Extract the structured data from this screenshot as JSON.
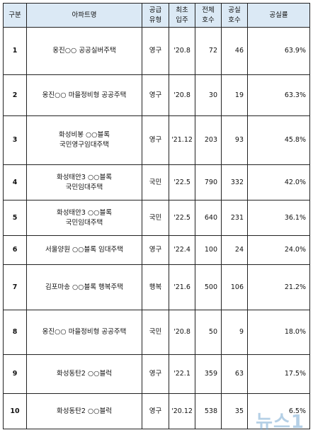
{
  "table": {
    "header": [
      [
        "구분"
      ],
      [
        "아파트명"
      ],
      [
        "공급",
        "유형"
      ],
      [
        "최초",
        "입주"
      ],
      [
        "전체",
        "호수"
      ],
      [
        "공실",
        "호수"
      ],
      [
        "공실률"
      ]
    ],
    "rows": [
      [
        "1",
        [
          "옹진○○ 공공실버주택"
        ],
        "영구",
        "'20.8",
        "72",
        "46",
        "63.9%"
      ],
      [
        "2",
        [
          "옹진○○ 마을정비형 공공주택"
        ],
        "영구",
        "'20.8",
        "30",
        "19",
        "63.3%"
      ],
      [
        "3",
        [
          "화성비봉 ○○블록",
          "국민영구임대주택"
        ],
        "영구",
        "'21.12",
        "203",
        "93",
        "45.8%"
      ],
      [
        "4",
        [
          "화성태안3 ○○블록",
          "국민임대주택"
        ],
        "국민",
        "'22.5",
        "790",
        "332",
        "42.0%"
      ],
      [
        "5",
        [
          "화성태안3 ○○블록",
          "국민임대주택"
        ],
        "국민",
        "'22.5",
        "640",
        "231",
        "36.1%"
      ],
      [
        "6",
        [
          "서울양원 ○○블록 임대주택"
        ],
        "영구",
        "'22.4",
        "100",
        "24",
        "24.0%"
      ],
      [
        "7",
        [
          "김포마송 ○○블록 행복주택"
        ],
        "행복",
        "'21.6",
        "500",
        "106",
        "21.2%"
      ],
      [
        "8",
        [
          "옹진○○ 마을정비형 공공주택"
        ],
        "국민",
        "'20.8",
        "50",
        "9",
        "18.0%"
      ],
      [
        "9",
        [
          "화성동탄2 ○○블럭"
        ],
        "영구",
        "'22.1",
        "359",
        "63",
        "17.5%"
      ],
      [
        "10",
        [
          "화성동탄2 ○○블럭"
        ],
        "영구",
        "'20.12",
        "538",
        "35",
        "6.5%"
      ]
    ]
  },
  "watermark": "뉴스1"
}
